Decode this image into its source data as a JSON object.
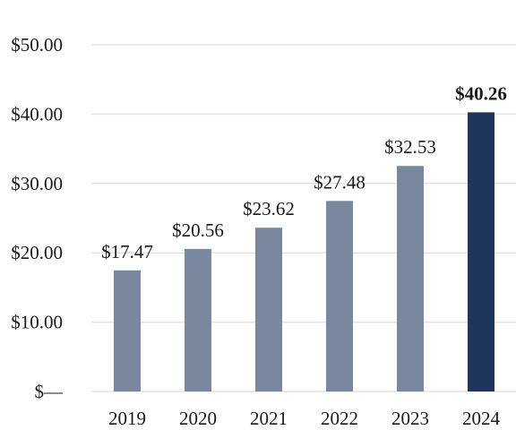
{
  "chart_data": {
    "type": "bar",
    "categories": [
      "2019",
      "2020",
      "2021",
      "2022",
      "2023",
      "2024"
    ],
    "values": [
      17.47,
      20.56,
      23.62,
      27.48,
      32.53,
      40.26
    ],
    "data_labels": [
      "$17.47",
      "$20.56",
      "$23.62",
      "$27.48",
      "$32.53",
      "$40.26"
    ],
    "highlight_index": 5,
    "colors": {
      "bar": "#7a889f",
      "highlight": "#1f355c"
    },
    "ylim": [
      0,
      50
    ],
    "y_ticks": [
      0,
      10,
      20,
      30,
      40,
      50
    ],
    "y_tick_labels": [
      "$—",
      "$10.00",
      "$20.00",
      "$30.00",
      "$40.00",
      "$50.00"
    ],
    "grid": true,
    "title": "",
    "xlabel": "",
    "ylabel": ""
  }
}
